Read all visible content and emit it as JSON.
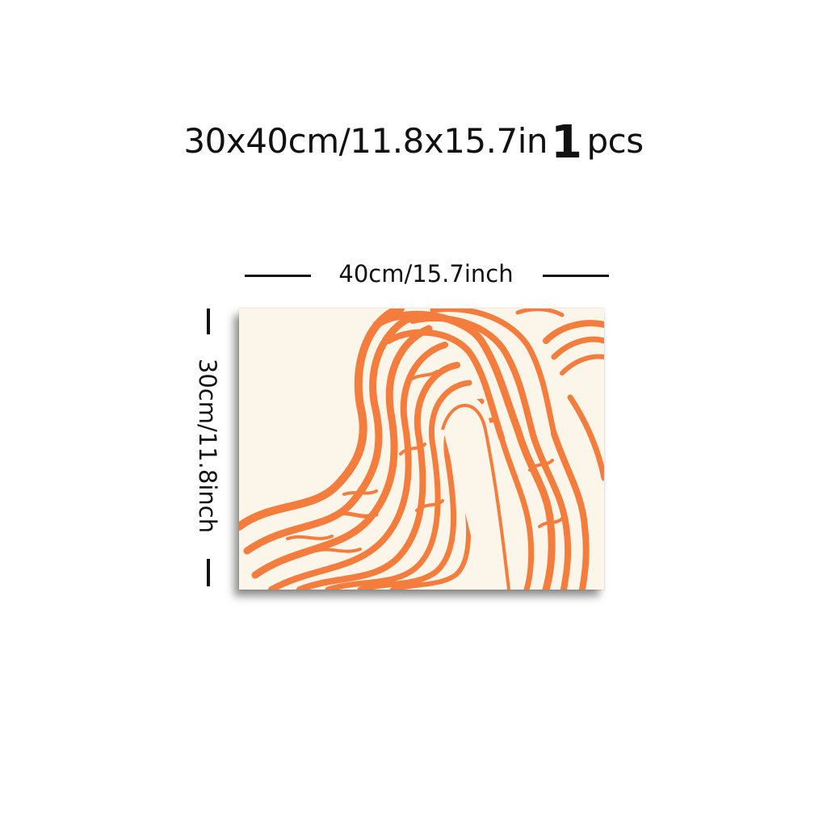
{
  "headline": {
    "size_text": "30x40cm/11.8x15.7in",
    "quantity": "1",
    "unit": "pcs"
  },
  "dimensions": {
    "width_label": "40cm/15.7inch",
    "height_label": "30cm/11.8inch"
  },
  "artwork": {
    "background_color": "#fbf6e9",
    "line_color": "#f47c3c"
  }
}
